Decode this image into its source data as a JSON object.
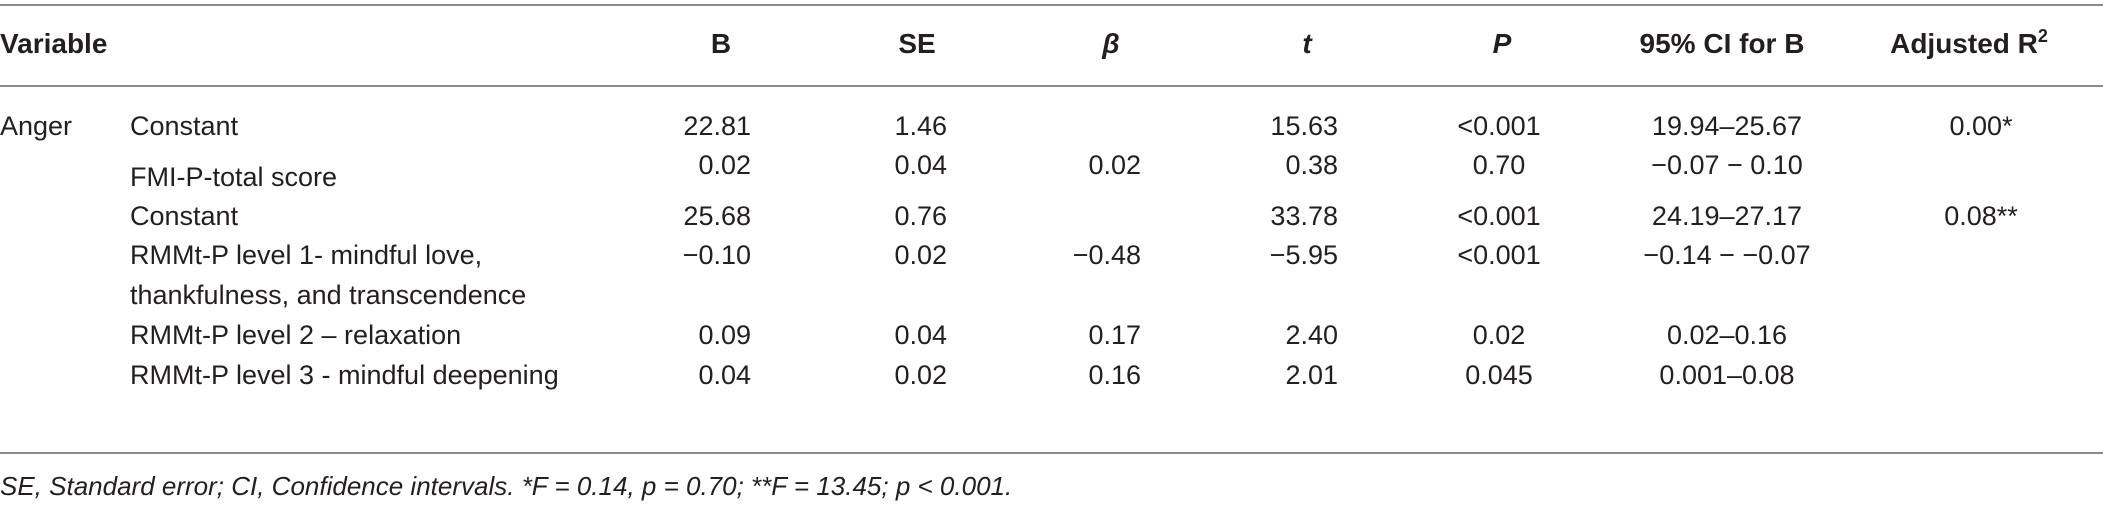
{
  "table": {
    "headers": {
      "variable": "Variable",
      "b": "B",
      "se": "SE",
      "beta": "β",
      "t": "t",
      "p": "P",
      "ci": "95% CI for B",
      "adj_r2": "Adjusted R",
      "adj_r2_sup": "2"
    },
    "group": "Anger",
    "rows": [
      {
        "label": "Constant",
        "b": "22.81",
        "se": "1.46",
        "beta": "",
        "t": "15.63",
        "p": "<0.001",
        "ci": "19.94–25.67",
        "adj": "0.00*"
      },
      {
        "label": "FMI-P-total score",
        "b": "0.02",
        "se": "0.04",
        "beta": "0.02",
        "t": "0.38",
        "p": "0.70",
        "ci": "−0.07 − 0.10",
        "adj": ""
      },
      {
        "label": "Constant",
        "b": "25.68",
        "se": "0.76",
        "beta": "",
        "t": "33.78",
        "p": "<0.001",
        "ci": "24.19–27.17",
        "adj": "0.08**"
      },
      {
        "label": "RMMt-P level 1- mindful love,",
        "label2": "thankfulness, and transcendence",
        "b": "−0.10",
        "se": "0.02",
        "beta": "−0.48",
        "t": "−5.95",
        "p": "<0.001",
        "ci": "−0.14 − −0.07",
        "adj": ""
      },
      {
        "label": "RMMt-P level 2 – relaxation",
        "b": "0.09",
        "se": "0.04",
        "beta": "0.17",
        "t": "2.40",
        "p": "0.02",
        "ci": "0.02–0.16",
        "adj": ""
      },
      {
        "label": "RMMt-P level 3 - mindful deepening",
        "b": "0.04",
        "se": "0.02",
        "beta": "0.16",
        "t": "2.01",
        "p": "0.045",
        "ci": "0.001–0.08",
        "adj": ""
      }
    ]
  },
  "footnote": "SE, Standard error; CI, Confidence intervals. *F = 0.14, p = 0.70; **F = 13.45; p < 0.001."
}
